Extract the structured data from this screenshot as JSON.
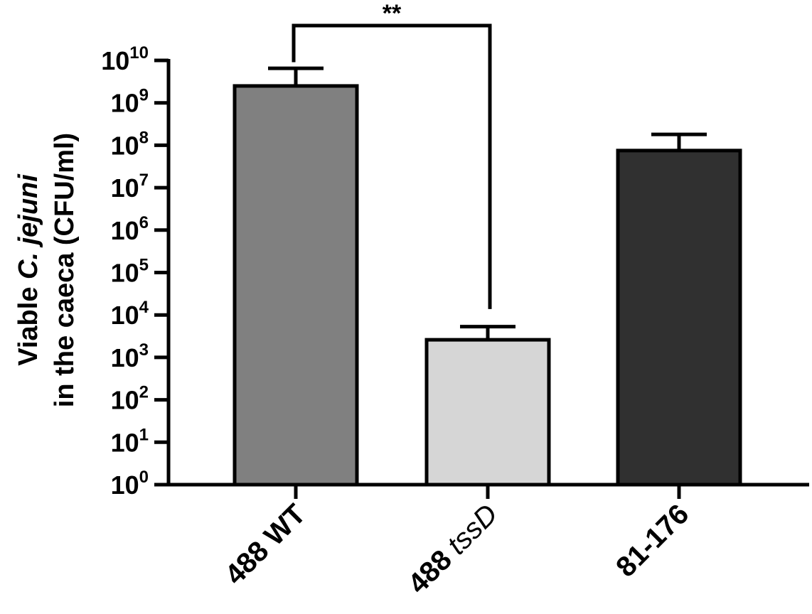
{
  "chart_data": {
    "type": "bar",
    "scale": "log10",
    "ylim": [
      1,
      10000000000
    ],
    "ylabel": {
      "line1_prefix": "Viable ",
      "line1_italic": "C. jejuni",
      "line2": "in the caeca (CFU/ml)"
    },
    "yticks": [
      {
        "base": "10",
        "exp": "0"
      },
      {
        "base": "10",
        "exp": "1"
      },
      {
        "base": "10",
        "exp": "2"
      },
      {
        "base": "10",
        "exp": "3"
      },
      {
        "base": "10",
        "exp": "4"
      },
      {
        "base": "10",
        "exp": "5"
      },
      {
        "base": "10",
        "exp": "6"
      },
      {
        "base": "10",
        "exp": "7"
      },
      {
        "base": "10",
        "exp": "8"
      },
      {
        "base": "10",
        "exp": "9"
      },
      {
        "base": "10",
        "exp": "10"
      }
    ],
    "categories": [
      {
        "label": "488 WT",
        "label_plain": "488 WT",
        "label_italic": ""
      },
      {
        "label": "488 tssD",
        "label_plain": "488 ",
        "label_italic": "tssD"
      },
      {
        "label": "81-176",
        "label_plain": "81-176",
        "label_italic": ""
      }
    ],
    "values": [
      2500000000,
      2600,
      75000000
    ],
    "error_upper": [
      6500000000,
      5300,
      180000000
    ],
    "colors": [
      "#808080",
      "#d6d6d6",
      "#303030"
    ],
    "annotations": [
      {
        "type": "significance",
        "text": "**",
        "between": [
          0,
          1
        ]
      }
    ],
    "grid": false
  }
}
